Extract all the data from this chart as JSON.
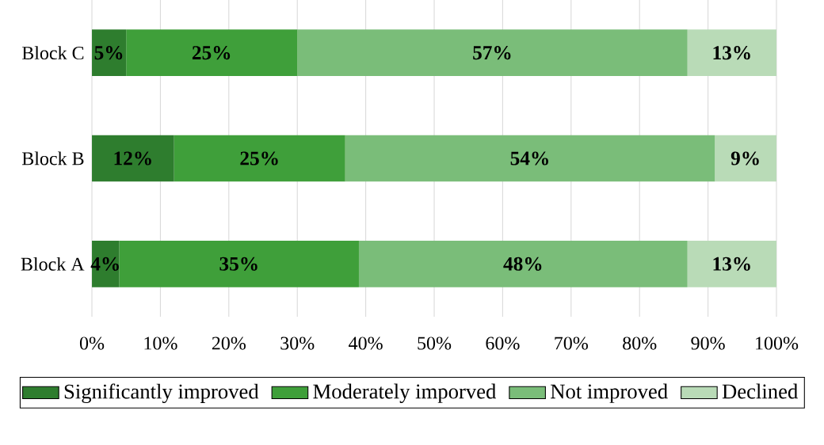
{
  "chart_data": {
    "type": "bar",
    "orientation": "horizontal",
    "stacked": true,
    "categories": [
      "Block C",
      "Block B",
      "Block A"
    ],
    "series": [
      {
        "name": "Significantly improved",
        "color": "#2e7d2e",
        "values": [
          5,
          12,
          4
        ],
        "value_labels": [
          "5%",
          "12%",
          "4%"
        ]
      },
      {
        "name": "Moderately imporved",
        "color": "#3f9f3a",
        "values": [
          25,
          25,
          35
        ],
        "value_labels": [
          "25%",
          "25%",
          "35%"
        ]
      },
      {
        "name": "Not improved",
        "color": "#7abd79",
        "values": [
          57,
          54,
          48
        ],
        "value_labels": [
          "57%",
          "54%",
          "48%"
        ]
      },
      {
        "name": "Declined",
        "color": "#b9dbb7",
        "values": [
          13,
          9,
          13
        ],
        "value_labels": [
          "13%",
          "9%",
          "13%"
        ]
      }
    ],
    "xlim": [
      0,
      100
    ],
    "xticks": [
      {
        "value": 0,
        "label": "0%"
      },
      {
        "value": 10,
        "label": "10%"
      },
      {
        "value": 20,
        "label": "20%"
      },
      {
        "value": 30,
        "label": "30%"
      },
      {
        "value": 40,
        "label": "40%"
      },
      {
        "value": 50,
        "label": "50%"
      },
      {
        "value": 60,
        "label": "60%"
      },
      {
        "value": 70,
        "label": "70%"
      },
      {
        "value": 80,
        "label": "80%"
      },
      {
        "value": 90,
        "label": "90%"
      },
      {
        "value": 100,
        "label": "100%"
      }
    ],
    "grid": "x",
    "legend": "bottom"
  }
}
